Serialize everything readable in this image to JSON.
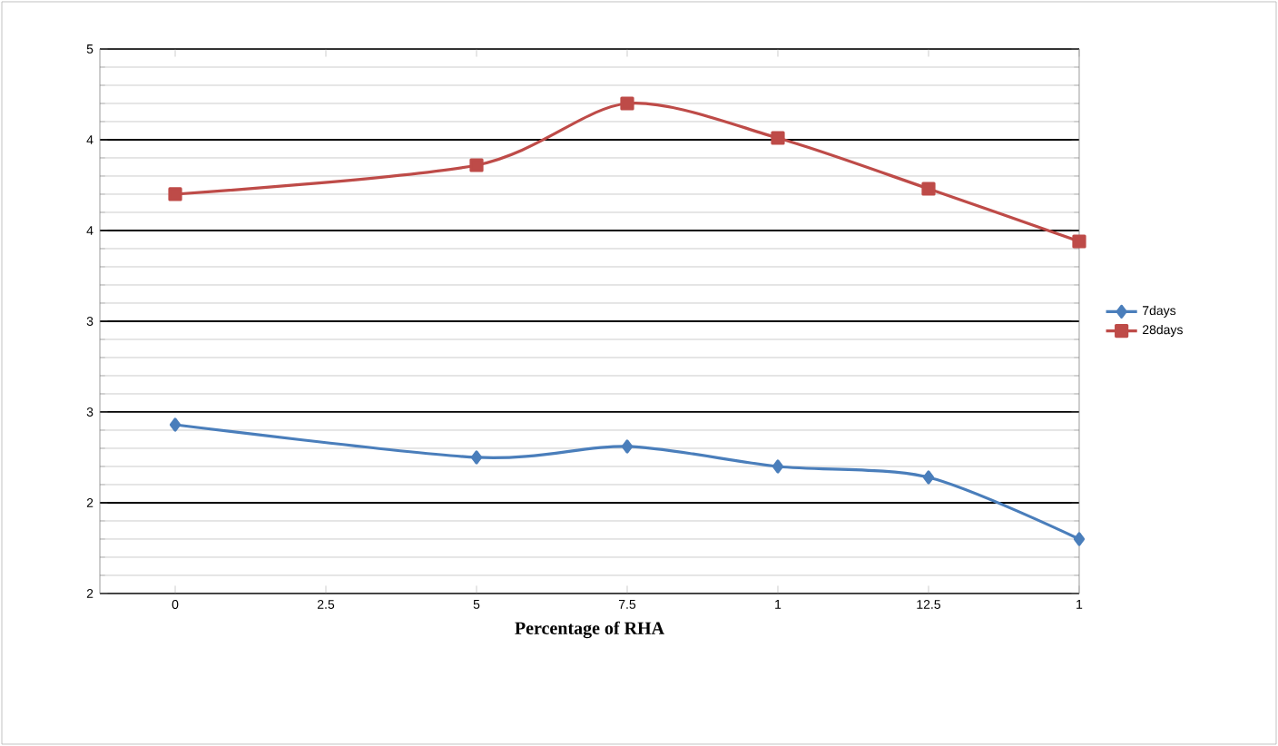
{
  "chart_data": {
    "type": "line",
    "xlabel": "Percentage of RHA",
    "categories": [
      "0",
      "2.5",
      "5",
      "7.5",
      "1",
      "12.5",
      "1"
    ],
    "series": [
      {
        "name": "7days",
        "color": "#4a7ebb",
        "marker": "diamond",
        "values": [
          2.93,
          null,
          2.75,
          2.81,
          2.7,
          2.64,
          2.3
        ]
      },
      {
        "name": "28days",
        "color": "#be4b48",
        "marker": "square",
        "values": [
          4.2,
          null,
          4.36,
          4.7,
          4.51,
          4.23,
          3.94
        ]
      }
    ],
    "ylim": [
      2,
      5
    ],
    "yticks": [
      {
        "value": 2,
        "label": "2"
      },
      {
        "value": 2.5,
        "label": "2"
      },
      {
        "value": 3,
        "label": "3"
      },
      {
        "value": 3.5,
        "label": "3"
      },
      {
        "value": 4,
        "label": "4"
      },
      {
        "value": 4.5,
        "label": "4"
      },
      {
        "value": 5,
        "label": "5"
      }
    ],
    "grid": "y",
    "legend": "right",
    "line_style": "solid"
  }
}
